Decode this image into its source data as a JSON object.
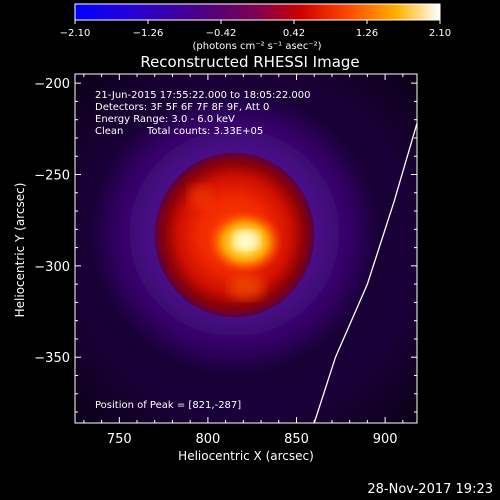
{
  "chart_data": {
    "type": "heatmap",
    "title": "Reconstructed RHESSI Image",
    "xlabel": "Heliocentric X (arcsec)",
    "ylabel": "Heliocentric Y (arcsec)",
    "xlim": [
      725,
      918
    ],
    "ylim": [
      -386,
      -195
    ],
    "x_ticks": [
      750,
      800,
      850,
      900
    ],
    "x_tick_labels": [
      "750",
      "800",
      "850",
      "900"
    ],
    "y_ticks": [
      -200,
      -250,
      -300,
      -350
    ],
    "y_tick_labels": [
      "−200",
      "−250",
      "−300",
      "−350"
    ],
    "colorbar": {
      "range": [
        -2.1,
        2.1
      ],
      "ticks": [
        -2.1,
        -1.26,
        -0.42,
        0.42,
        1.26,
        2.1
      ],
      "tick_labels": [
        "−2.10",
        "−1.26",
        "−0.42",
        "0.42",
        "1.26",
        "2.10"
      ],
      "units_label": "(photons cm⁻² s⁻¹ asec⁻²)",
      "colormap": [
        "#0000ff",
        "#2a00d0",
        "#4b0082",
        "#7a0060",
        "#c00000",
        "#ff3000",
        "#ff7a00",
        "#ffd000",
        "#ffffff"
      ]
    },
    "annotations": {
      "time_range": "21-Jun-2015 17:55:22.000 to 18:05:22.000",
      "detectors": "Detectors: 3F 5F 6F 7F 8F 9F, Att 0",
      "energy_range": "Energy Range: 3.0 - 6.0 keV",
      "clean": "Clean",
      "total_counts": "Total counts: 3.33E+05",
      "peak_position": "Position of Peak = [821,-287]"
    },
    "source": {
      "peak_x": 821,
      "peak_y": -287,
      "disk_center_x": 815,
      "disk_center_y": -282,
      "disk_radius_arcsec": 45
    },
    "limb_curve_points": [
      [
        918,
        -222
      ],
      [
        905,
        -265
      ],
      [
        890,
        -310
      ],
      [
        872,
        -350
      ],
      [
        860,
        -386
      ]
    ]
  },
  "footer": {
    "timestamp": "28-Nov-2017 19:23"
  }
}
